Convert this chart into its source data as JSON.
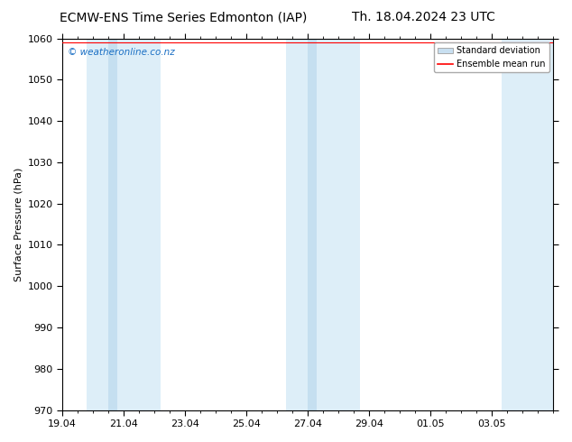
{
  "title_left": "ECMW-ENS Time Series Edmonton (IAP)",
  "title_right": "Th. 18.04.2024 23 UTC",
  "ylabel": "Surface Pressure (hPa)",
  "watermark": "© weatheronline.co.nz",
  "ylim": [
    970,
    1060
  ],
  "yticks": [
    970,
    980,
    990,
    1000,
    1010,
    1020,
    1030,
    1040,
    1050,
    1060
  ],
  "xlim_start": 0.0,
  "xlim_end": 16.0,
  "xtick_labels": [
    "19.04",
    "21.04",
    "23.04",
    "25.04",
    "27.04",
    "29.04",
    "01.05",
    "03.05"
  ],
  "xtick_positions": [
    0,
    2,
    4,
    6,
    8,
    10,
    12,
    14
  ],
  "shaded_bands_light": [
    {
      "xmin": 0.8,
      "xmax": 1.5
    },
    {
      "xmin": 1.5,
      "xmax": 3.2
    },
    {
      "xmin": 7.3,
      "xmax": 8.0
    },
    {
      "xmin": 8.0,
      "xmax": 9.7
    },
    {
      "xmin": 14.3,
      "xmax": 16.0
    }
  ],
  "shaded_bands_dark": [
    {
      "xmin": 1.5,
      "xmax": 1.8
    },
    {
      "xmin": 8.0,
      "xmax": 8.3
    }
  ],
  "band_color_light": "#ddeef8",
  "band_color_dark": "#c5dff0",
  "band_alpha": 1.0,
  "mean_run_color": "#ff0000",
  "mean_run_linewidth": 0.8,
  "background_color": "#ffffff",
  "title_fontsize": 10,
  "label_fontsize": 8,
  "tick_fontsize": 8,
  "watermark_color": "#1a6fc4",
  "legend_std_color": "#c8dff0",
  "legend_std_edge": "#aaaaaa"
}
